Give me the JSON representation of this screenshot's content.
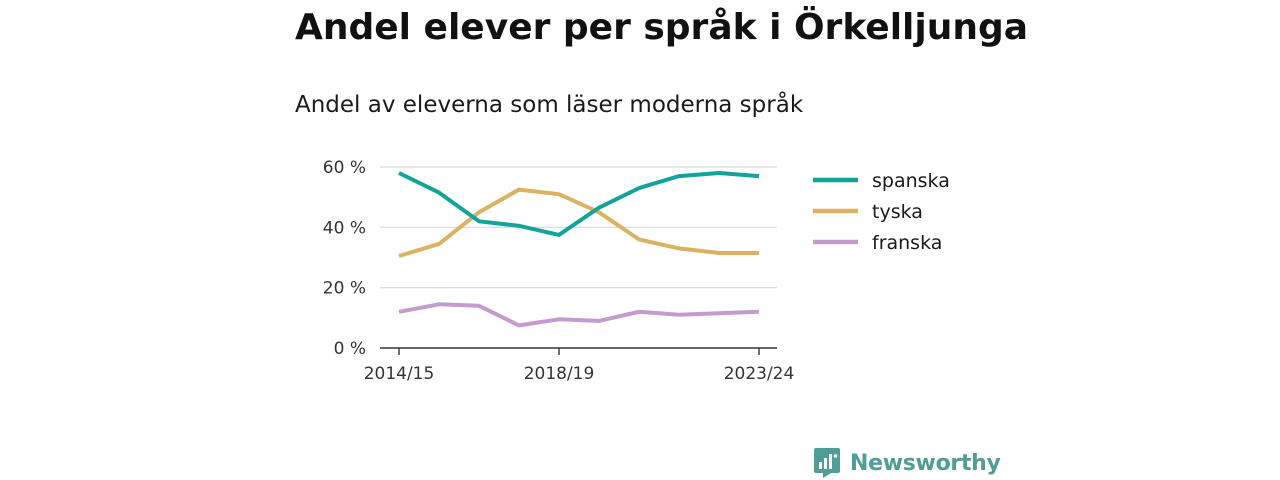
{
  "chart_data": {
    "type": "line",
    "title": "Andel elever per språk i Örkelljunga",
    "subtitle": "Andel av eleverna som läser moderna språk",
    "xlabel": "",
    "ylabel": "",
    "x": [
      "2014/15",
      "2015/16",
      "2016/17",
      "2017/18",
      "2018/19",
      "2019/20",
      "2020/21",
      "2021/22",
      "2022/23",
      "2023/24"
    ],
    "x_tick_labels": [
      "2014/15",
      "2018/19",
      "2023/24"
    ],
    "y_ticks": [
      0,
      20,
      40,
      60
    ],
    "y_tick_labels": [
      "0 %",
      "20 %",
      "40 %",
      "60 %"
    ],
    "ylim": [
      0,
      60
    ],
    "grid": true,
    "legend_position": "right",
    "series": [
      {
        "name": "spanska",
        "color": "#12a39a",
        "values": [
          58,
          51.5,
          42,
          40.5,
          37.5,
          46.5,
          53,
          57,
          58,
          57
        ]
      },
      {
        "name": "tyska",
        "color": "#dbb262",
        "values": [
          30.5,
          34.5,
          45,
          52.5,
          51,
          45,
          36,
          33,
          31.5,
          31.5
        ]
      },
      {
        "name": "franska",
        "color": "#c39bcd",
        "values": [
          12,
          14.5,
          14,
          7.5,
          9.5,
          9,
          12,
          11,
          11.5,
          12
        ]
      }
    ]
  },
  "branding": {
    "logo_text": "Newsworthy",
    "logo_icon": "newsworthy-logo-icon",
    "logo_color": "#4f9d97"
  }
}
